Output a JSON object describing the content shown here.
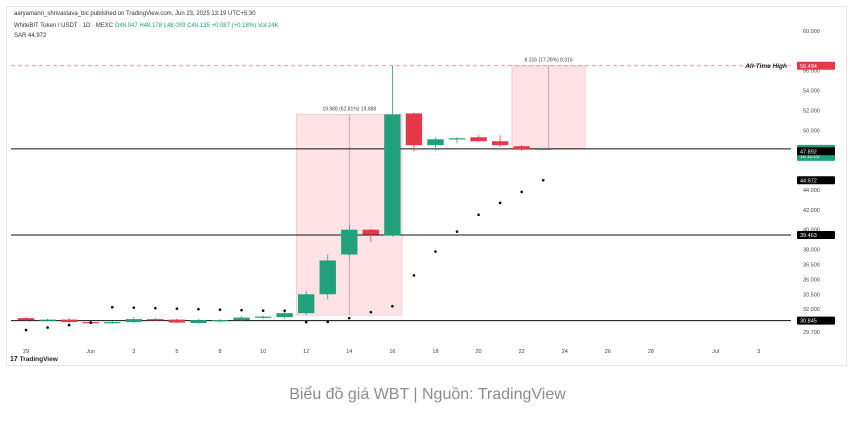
{
  "header": {
    "publisher": "aaryamann_shrivastava_bic published on TradingView.com, Jun 23, 2025 13:19 UTC+5:30",
    "symbol": "WhiteBIT Token / USDT · 1D · MEXC",
    "ohlc": "O48.047 H48.178 L48.009 C48.135 +0.087 (+0.18%)",
    "vol": "Vol 24K",
    "sar": "SAR  44.972"
  },
  "caption": "Biểu đồ giá WBT | Nguồn: TradingView",
  "logo_text": "TradingView",
  "colors": {
    "up": "#22a07b",
    "down": "#e5394a",
    "sar": "#000000",
    "range_fill": "#fde3e6",
    "ath_line": "#e27a84"
  },
  "chart_data": {
    "type": "candlestick",
    "y_ticks": [
      "60.000",
      "56.000",
      "54.000",
      "52.000",
      "50.000",
      "47.892",
      "44.000",
      "42.000",
      "40.000",
      "38.000",
      "36.500",
      "35.000",
      "33.500",
      "32.000",
      "30.845",
      "29.700"
    ],
    "y_tick_values": [
      60,
      56,
      54,
      52,
      50,
      47.892,
      44,
      42,
      40,
      38,
      36.5,
      35,
      33.5,
      32,
      30.845,
      29.7
    ],
    "x_ticks": [
      {
        "label": "29",
        "day": 0
      },
      {
        "label": "Jun",
        "day": 3
      },
      {
        "label": "3",
        "day": 5
      },
      {
        "label": "5",
        "day": 7
      },
      {
        "label": "8",
        "day": 9
      },
      {
        "label": "10",
        "day": 11
      },
      {
        "label": "12",
        "day": 13
      },
      {
        "label": "14",
        "day": 15
      },
      {
        "label": "16",
        "day": 17
      },
      {
        "label": "18",
        "day": 19
      },
      {
        "label": "20",
        "day": 21
      },
      {
        "label": "22",
        "day": 23
      },
      {
        "label": "24",
        "day": 25
      },
      {
        "label": "26",
        "day": 27
      },
      {
        "label": "28",
        "day": 29
      },
      {
        "label": "Jul",
        "day": 32
      },
      {
        "label": "3",
        "day": 34
      }
    ],
    "candles": [
      {
        "day": 0,
        "o": 31.1,
        "h": 31.2,
        "l": 30.8,
        "c": 30.9
      },
      {
        "day": 1,
        "o": 30.9,
        "h": 31.05,
        "l": 30.75,
        "c": 30.95
      },
      {
        "day": 2,
        "o": 30.95,
        "h": 31.1,
        "l": 30.65,
        "c": 30.7
      },
      {
        "day": 3,
        "o": 30.7,
        "h": 30.8,
        "l": 30.5,
        "c": 30.6
      },
      {
        "day": 4,
        "o": 30.6,
        "h": 30.8,
        "l": 30.5,
        "c": 30.7
      },
      {
        "day": 5,
        "o": 30.7,
        "h": 31.2,
        "l": 30.6,
        "c": 31.0
      },
      {
        "day": 6,
        "o": 31.0,
        "h": 31.1,
        "l": 30.8,
        "c": 30.9
      },
      {
        "day": 7,
        "o": 30.95,
        "h": 31.05,
        "l": 30.6,
        "c": 30.65
      },
      {
        "day": 8,
        "o": 30.6,
        "h": 31.0,
        "l": 30.5,
        "c": 30.9
      },
      {
        "day": 9,
        "o": 30.85,
        "h": 31.0,
        "l": 30.65,
        "c": 30.9
      },
      {
        "day": 10,
        "o": 30.9,
        "h": 31.3,
        "l": 30.8,
        "c": 31.15
      },
      {
        "day": 11,
        "o": 31.15,
        "h": 31.35,
        "l": 31.0,
        "c": 31.25
      },
      {
        "day": 12,
        "o": 31.2,
        "h": 31.8,
        "l": 31.0,
        "c": 31.6
      },
      {
        "day": 13,
        "o": 31.6,
        "h": 33.8,
        "l": 31.4,
        "c": 33.5
      },
      {
        "day": 14,
        "o": 33.5,
        "h": 37.5,
        "l": 33.0,
        "c": 36.9
      },
      {
        "day": 15,
        "o": 37.5,
        "h": 40.5,
        "l": 37.2,
        "c": 40.0
      },
      {
        "day": 16,
        "o": 40.0,
        "h": 40.1,
        "l": 38.8,
        "c": 39.5
      },
      {
        "day": 17,
        "o": 39.4,
        "h": 56.5,
        "l": 39.3,
        "c": 51.6
      },
      {
        "day": 18,
        "o": 51.7,
        "h": 51.8,
        "l": 47.9,
        "c": 48.5
      },
      {
        "day": 19,
        "o": 48.5,
        "h": 49.3,
        "l": 48.0,
        "c": 49.1
      },
      {
        "day": 20,
        "o": 49.1,
        "h": 49.3,
        "l": 48.7,
        "c": 49.2
      },
      {
        "day": 21,
        "o": 49.3,
        "h": 49.5,
        "l": 48.9,
        "c": 48.9
      },
      {
        "day": 22,
        "o": 48.9,
        "h": 49.5,
        "l": 48.3,
        "c": 48.5
      },
      {
        "day": 23,
        "o": 48.4,
        "h": 48.5,
        "l": 47.95,
        "c": 48.05
      },
      {
        "day": 24,
        "o": 48.047,
        "h": 48.178,
        "l": 48.009,
        "c": 48.135
      }
    ],
    "sar_points": [
      {
        "day": 0,
        "v": 29.9
      },
      {
        "day": 1,
        "v": 30.15
      },
      {
        "day": 2,
        "v": 30.4
      },
      {
        "day": 3,
        "v": 30.65
      },
      {
        "day": 4,
        "v": 32.2
      },
      {
        "day": 5,
        "v": 32.15
      },
      {
        "day": 6,
        "v": 32.1
      },
      {
        "day": 7,
        "v": 32.05
      },
      {
        "day": 8,
        "v": 32.0
      },
      {
        "day": 9,
        "v": 31.95
      },
      {
        "day": 10,
        "v": 31.9
      },
      {
        "day": 11,
        "v": 31.85
      },
      {
        "day": 12,
        "v": 31.85
      },
      {
        "day": 13,
        "v": 30.7
      },
      {
        "day": 14,
        "v": 30.72
      },
      {
        "day": 15,
        "v": 31.1
      },
      {
        "day": 16,
        "v": 31.7
      },
      {
        "day": 17,
        "v": 32.3
      },
      {
        "day": 18,
        "v": 35.4
      },
      {
        "day": 19,
        "v": 37.8
      },
      {
        "day": 20,
        "v": 39.8
      },
      {
        "day": 21,
        "v": 41.5
      },
      {
        "day": 22,
        "v": 42.7
      },
      {
        "day": 23,
        "v": 43.8
      },
      {
        "day": 24,
        "v": 44.972
      }
    ],
    "horizontal_levels": [
      {
        "value": 48.135,
        "label": "48.135",
        "sublabel": "16:10:03",
        "color": "#22a07b",
        "line": "solid"
      },
      {
        "value": 47.892,
        "label": "47.892",
        "color": "#000000",
        "line": "none"
      },
      {
        "value": 44.972,
        "label": "44.972",
        "color": "#000000",
        "line": "none"
      },
      {
        "value": 39.463,
        "label": "39.463",
        "color": "#000000",
        "line": "solid"
      },
      {
        "value": 30.845,
        "label": "30.845",
        "color": "#000000",
        "line": "solid"
      }
    ],
    "ath": {
      "value": 56.494,
      "label": "56.494",
      "text": "All-Time High"
    },
    "range_boxes": [
      {
        "day_from": 13,
        "day_to": 17,
        "from": 31.4,
        "to": 51.6,
        "label": "19.988 (62.81%) 19,988"
      },
      {
        "day_from": 23,
        "day_to": 25.5,
        "from": 48.2,
        "to": 56.5,
        "label": "8.316 (17.26%) 8,316"
      }
    ],
    "y_range": [
      29.2,
      61.0
    ],
    "x_range": [
      -0.7,
      35.5
    ]
  }
}
